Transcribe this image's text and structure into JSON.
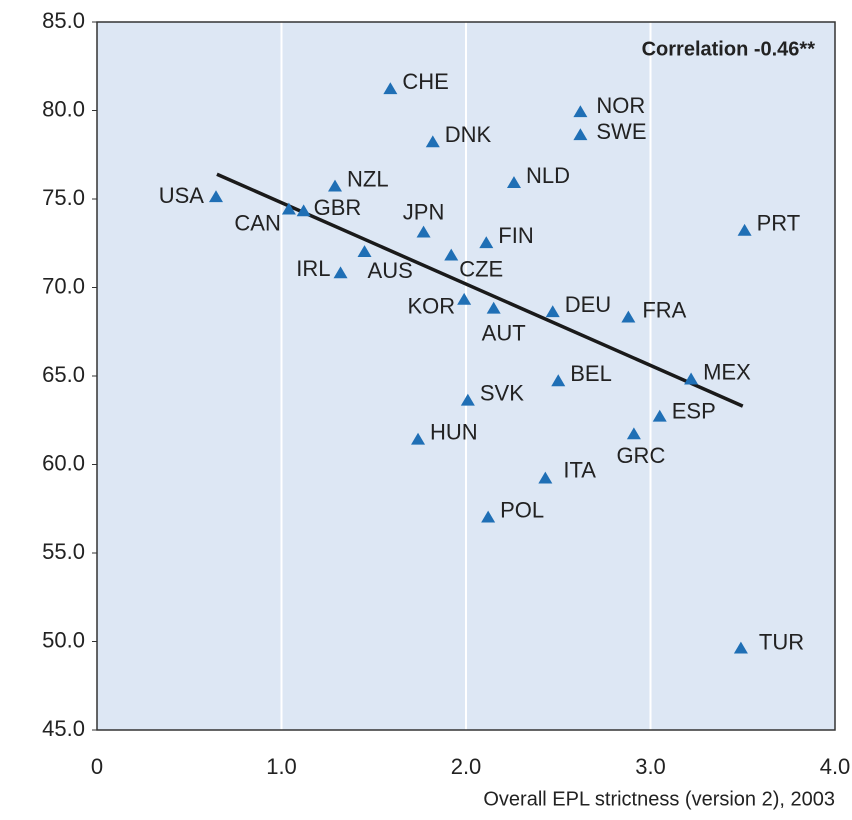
{
  "chart_data": {
    "type": "scatter",
    "annotation": "Correlation -0.46**",
    "x_label": "Overall EPL strictness (version 2), 2003",
    "color": "#1f6fb5",
    "point_labels": [
      "CHE",
      "NOR",
      "SWE",
      "DNK",
      "NLD",
      "NZL",
      "USA",
      "CAN",
      "GBR",
      "JPN",
      "PRT",
      "FIN",
      "AUS",
      "CZE",
      "IRL",
      "KOR",
      "AUT",
      "DEU",
      "FRA",
      "BEL",
      "MEX",
      "SVK",
      "ESP",
      "HUN",
      "GRC",
      "ITA",
      "POL",
      "TUR"
    ],
    "x": [
      1.59,
      2.62,
      2.62,
      1.82,
      2.26,
      1.29,
      0.645,
      1.04,
      1.12,
      1.77,
      3.51,
      2.11,
      1.45,
      1.92,
      1.32,
      1.99,
      2.15,
      2.47,
      2.88,
      2.5,
      3.22,
      2.01,
      3.05,
      1.74,
      2.91,
      2.43,
      2.12,
      3.49
    ],
    "values": [
      81.2,
      79.9,
      78.6,
      78.2,
      75.9,
      75.7,
      75.1,
      74.4,
      74.3,
      73.1,
      73.2,
      72.5,
      72.0,
      71.8,
      70.8,
      69.3,
      68.8,
      68.6,
      68.3,
      64.7,
      64.8,
      63.6,
      62.7,
      61.4,
      61.7,
      59.2,
      57.0,
      49.6
    ],
    "trendline": {
      "x": [
        0.65,
        3.5
      ],
      "y": [
        76.4,
        63.3
      ],
      "color": "#1a1a1a"
    },
    "xlim": [
      0,
      4
    ],
    "ylim": [
      45,
      85
    ],
    "xticks": [
      0,
      {
        "value": 1,
        "label": "1.0"
      },
      {
        "value": 2,
        "label": "2.0"
      },
      {
        "value": 3,
        "label": "3.0"
      },
      {
        "value": 4,
        "label": "4.0"
      }
    ],
    "yticks": [
      {
        "value": 45,
        "label": "45.0"
      },
      {
        "value": 50,
        "label": "50.0"
      },
      {
        "value": 55,
        "label": "55.0"
      },
      {
        "value": 60,
        "label": "60.0"
      },
      {
        "value": 65,
        "label": "65.0"
      },
      {
        "value": 70,
        "label": "70.0"
      },
      {
        "value": 75,
        "label": "75.0"
      },
      {
        "value": 80,
        "label": "80.0"
      },
      {
        "value": 85,
        "label": "85.0"
      }
    ],
    "grid": true
  }
}
